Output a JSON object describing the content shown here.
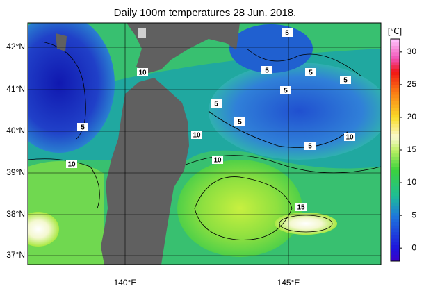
{
  "title": "Daily 100m temperatures 28 Jun. 2018.",
  "map": {
    "lat_labels": [
      "42°N",
      "41°N",
      "40°N",
      "39°N",
      "38°N",
      "37°N"
    ],
    "lon_labels": [
      "140°E",
      "145°E"
    ],
    "contour_labels": [
      "5",
      "10",
      "5",
      "5",
      "5",
      "5",
      "5",
      "5",
      "5",
      "5",
      "10",
      "10",
      "10",
      "10",
      "15"
    ]
  },
  "colorbar": {
    "unit": "[℃]",
    "lim": [
      -2,
      32
    ],
    "ticks": [
      30,
      25,
      20,
      15,
      10,
      5,
      0
    ]
  }
}
